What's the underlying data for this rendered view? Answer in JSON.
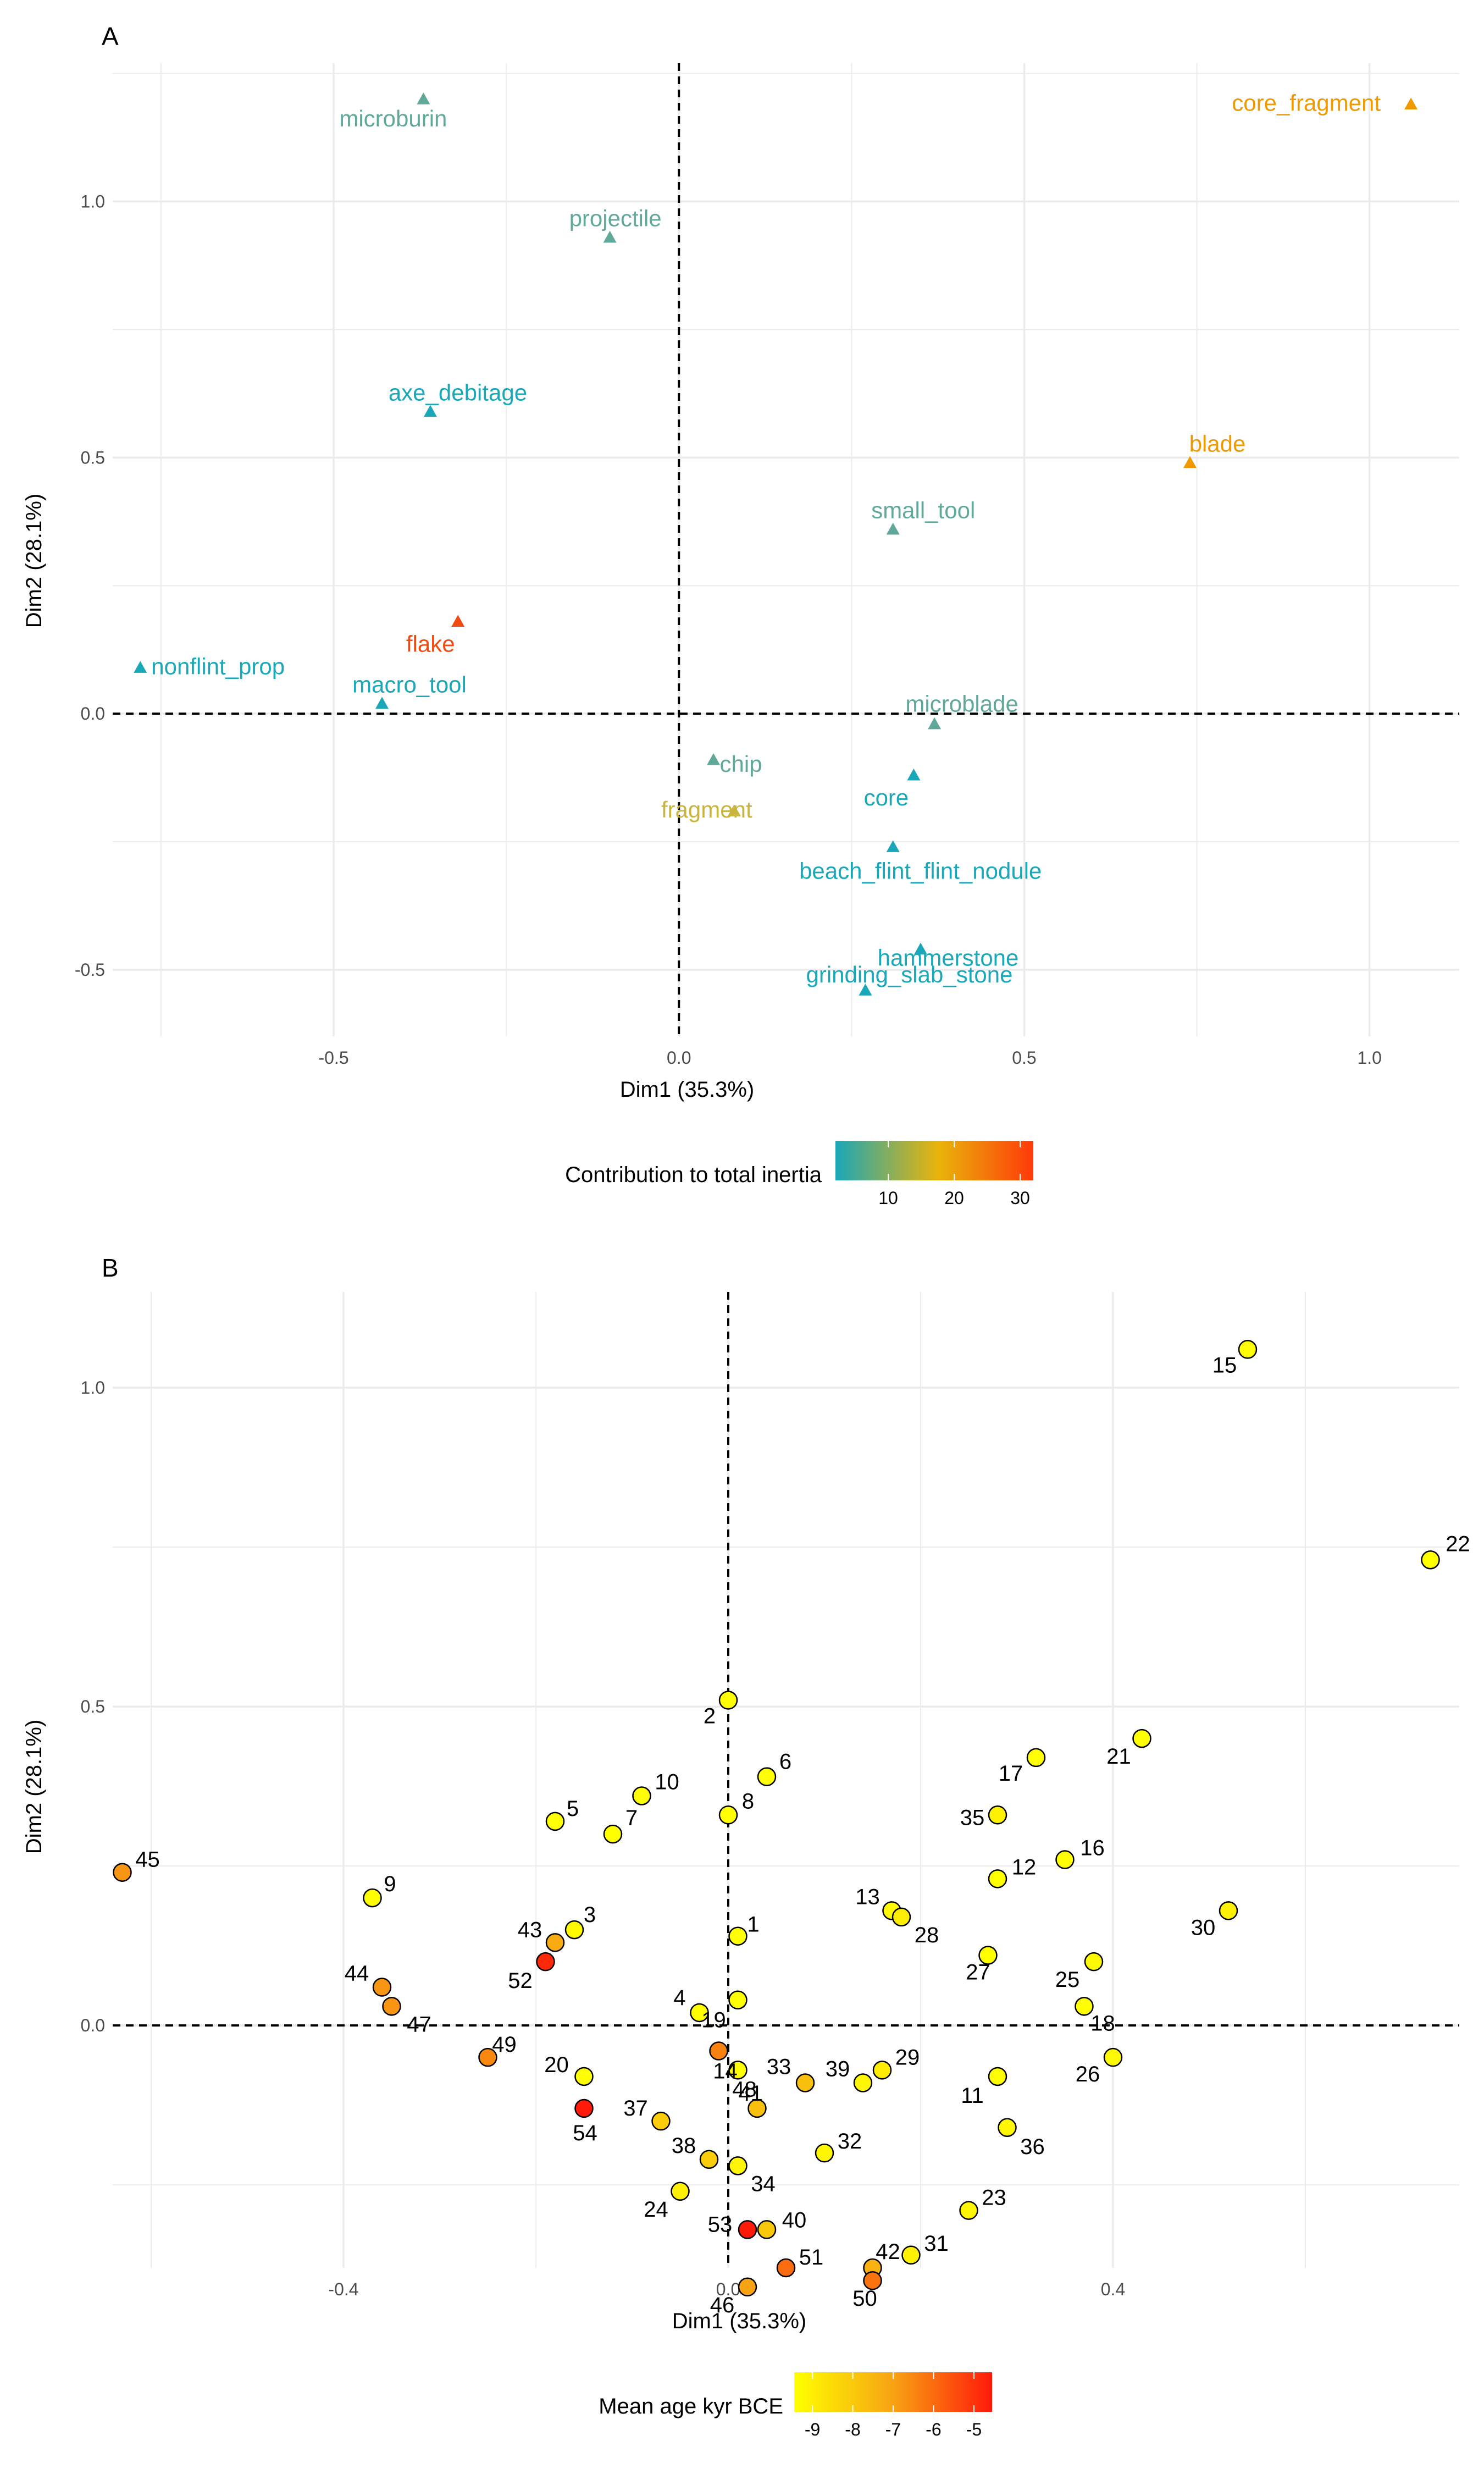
{
  "colors": {
    "teal": "#1AA7B8",
    "sage": "#5FA89A",
    "mustard": "#C9B43C",
    "orange": "#EE9A00",
    "red_orange": "#F24B12",
    "grid": "#EBEBEB",
    "inertia_gradient": [
      "#1AA7B8",
      "#E9B40A",
      "#FF3A0A"
    ],
    "age_gradient": [
      "#FFFF00",
      "#F7A313",
      "#FF1A0A"
    ]
  },
  "chart_data": [
    {
      "type": "scatter",
      "panel_label": "A",
      "xlabel": "Dim1 (35.3%)",
      "ylabel": "Dim2 (28.1%)",
      "xlim": [
        -0.82,
        1.13
      ],
      "ylim": [
        -0.63,
        1.27
      ],
      "x_ticks": [
        -0.5,
        0.0,
        0.5,
        1.0
      ],
      "x_tick_labels": [
        "-0.5",
        "0.0",
        "0.5",
        "1.0"
      ],
      "y_ticks": [
        -0.5,
        0.0,
        0.5,
        1.0
      ],
      "y_tick_labels": [
        "-0.5",
        "0.0",
        "0.5",
        "1.0"
      ],
      "grid": true,
      "reference_lines": {
        "x": 0,
        "y": 0,
        "style": "dashed"
      },
      "marker": "triangle",
      "legend": {
        "title": "Contribution to total inertia",
        "type": "colorbar",
        "ticks": [
          "10",
          "20",
          "30"
        ],
        "placement": "bottom"
      },
      "points": [
        {
          "label": "microburin",
          "x": -0.37,
          "y": 1.2,
          "color": "#5FA89A"
        },
        {
          "label": "core_fragment",
          "x": 1.06,
          "y": 1.19,
          "color": "#EE9A00"
        },
        {
          "label": "projectile",
          "x": -0.1,
          "y": 0.93,
          "color": "#5FA89A"
        },
        {
          "label": "axe_debitage",
          "x": -0.36,
          "y": 0.59,
          "color": "#1AA7B8"
        },
        {
          "label": "blade",
          "x": 0.74,
          "y": 0.49,
          "color": "#EE9A00"
        },
        {
          "label": "small_tool",
          "x": 0.31,
          "y": 0.36,
          "color": "#5FA89A"
        },
        {
          "label": "flake",
          "x": -0.32,
          "y": 0.18,
          "color": "#F24B12"
        },
        {
          "label": "nonflint_prop",
          "x": -0.78,
          "y": 0.09,
          "color": "#1AA7B8"
        },
        {
          "label": "macro_tool",
          "x": -0.43,
          "y": 0.02,
          "color": "#1AA7B8"
        },
        {
          "label": "microblade",
          "x": 0.37,
          "y": -0.02,
          "color": "#5FA89A"
        },
        {
          "label": "chip",
          "x": 0.05,
          "y": -0.09,
          "color": "#5FA89A"
        },
        {
          "label": "core",
          "x": 0.34,
          "y": -0.12,
          "color": "#1AA7B8"
        },
        {
          "label": "fragment",
          "x": 0.08,
          "y": -0.19,
          "color": "#C9B43C"
        },
        {
          "label": "beach_flint_flint_nodule",
          "x": 0.31,
          "y": -0.26,
          "color": "#1AA7B8"
        },
        {
          "label": "hammerstone",
          "x": 0.35,
          "y": -0.46,
          "color": "#1AA7B8"
        },
        {
          "label": "grinding_slab_stone",
          "x": 0.27,
          "y": -0.54,
          "color": "#1AA7B8"
        }
      ]
    },
    {
      "type": "scatter",
      "panel_label": "B",
      "xlabel": "Dim1 (35.3%)",
      "ylabel": "Dim2 (28.1%)",
      "xlim": [
        -0.64,
        0.76
      ],
      "ylim": [
        -0.38,
        1.15
      ],
      "x_ticks": [
        -0.4,
        0.0,
        0.4
      ],
      "x_tick_labels": [
        "-0.4",
        "0.0",
        "0.4"
      ],
      "y_ticks": [
        0.0,
        0.5,
        1.0
      ],
      "y_tick_labels": [
        "0.0",
        "0.5",
        "1.0"
      ],
      "grid": true,
      "reference_lines": {
        "x": 0,
        "y": 0,
        "style": "dashed"
      },
      "marker": "circle",
      "legend": {
        "title": "Mean age kyr BCE",
        "type": "colorbar",
        "ticks": [
          "-9",
          "-8",
          "-7",
          "-6",
          "-5"
        ],
        "placement": "bottom"
      },
      "points": [
        {
          "label": "1",
          "x": 0.01,
          "y": 0.14,
          "age": -9.0
        },
        {
          "label": "2",
          "x": 0.0,
          "y": 0.51,
          "age": -9.0
        },
        {
          "label": "3",
          "x": -0.16,
          "y": 0.15,
          "age": -8.9
        },
        {
          "label": "4",
          "x": -0.03,
          "y": 0.02,
          "age": -9.0
        },
        {
          "label": "5",
          "x": -0.18,
          "y": 0.32,
          "age": -9.0
        },
        {
          "label": "6",
          "x": 0.04,
          "y": 0.39,
          "age": -9.0
        },
        {
          "label": "7",
          "x": -0.12,
          "y": 0.3,
          "age": -9.0
        },
        {
          "label": "8",
          "x": 0.0,
          "y": 0.33,
          "age": -9.0
        },
        {
          "label": "9",
          "x": -0.37,
          "y": 0.2,
          "age": -9.0
        },
        {
          "label": "10",
          "x": -0.09,
          "y": 0.36,
          "age": -9.0
        },
        {
          "label": "11",
          "x": 0.28,
          "y": -0.08,
          "age": -9.0
        },
        {
          "label": "12",
          "x": 0.28,
          "y": 0.23,
          "age": -9.0
        },
        {
          "label": "13",
          "x": 0.17,
          "y": 0.18,
          "age": -8.9
        },
        {
          "label": "14",
          "x": -0.01,
          "y": -0.04,
          "age": -6.5
        },
        {
          "label": "15",
          "x": 0.54,
          "y": 1.06,
          "age": -9.0
        },
        {
          "label": "16",
          "x": 0.35,
          "y": 0.26,
          "age": -9.0
        },
        {
          "label": "17",
          "x": 0.32,
          "y": 0.42,
          "age": -9.0
        },
        {
          "label": "18",
          "x": 0.37,
          "y": 0.03,
          "age": -9.0
        },
        {
          "label": "19",
          "x": 0.01,
          "y": 0.04,
          "age": -9.0
        },
        {
          "label": "20",
          "x": -0.15,
          "y": -0.08,
          "age": -9.0
        },
        {
          "label": "21",
          "x": 0.43,
          "y": 0.45,
          "age": -9.0
        },
        {
          "label": "22",
          "x": 0.73,
          "y": 0.73,
          "age": -9.0
        },
        {
          "label": "23",
          "x": 0.25,
          "y": -0.29,
          "age": -8.8
        },
        {
          "label": "24",
          "x": -0.05,
          "y": -0.26,
          "age": -8.7
        },
        {
          "label": "25",
          "x": 0.38,
          "y": 0.1,
          "age": -8.9
        },
        {
          "label": "26",
          "x": 0.4,
          "y": -0.05,
          "age": -8.9
        },
        {
          "label": "27",
          "x": 0.27,
          "y": 0.11,
          "age": -9.0
        },
        {
          "label": "28",
          "x": 0.18,
          "y": 0.17,
          "age": -8.6
        },
        {
          "label": "29",
          "x": 0.16,
          "y": -0.07,
          "age": -8.6
        },
        {
          "label": "30",
          "x": 0.52,
          "y": 0.18,
          "age": -8.7
        },
        {
          "label": "31",
          "x": 0.19,
          "y": -0.36,
          "age": -8.7
        },
        {
          "label": "32",
          "x": 0.1,
          "y": -0.2,
          "age": -8.8
        },
        {
          "label": "33",
          "x": 0.08,
          "y": -0.09,
          "age": -7.6
        },
        {
          "label": "34",
          "x": 0.01,
          "y": -0.22,
          "age": -8.8
        },
        {
          "label": "35",
          "x": 0.28,
          "y": 0.33,
          "age": -8.7
        },
        {
          "label": "36",
          "x": 0.29,
          "y": -0.16,
          "age": -8.8
        },
        {
          "label": "37",
          "x": -0.07,
          "y": -0.15,
          "age": -7.9
        },
        {
          "label": "38",
          "x": -0.02,
          "y": -0.21,
          "age": -7.9
        },
        {
          "label": "39",
          "x": 0.14,
          "y": -0.09,
          "age": -8.8
        },
        {
          "label": "40",
          "x": 0.04,
          "y": -0.32,
          "age": -7.8
        },
        {
          "label": "41",
          "x": 0.03,
          "y": -0.13,
          "age": -7.6
        },
        {
          "label": "42",
          "x": 0.15,
          "y": -0.38,
          "age": -7.3
        },
        {
          "label": "43",
          "x": -0.18,
          "y": 0.13,
          "age": -7.2
        },
        {
          "label": "44",
          "x": -0.36,
          "y": 0.06,
          "age": -6.8
        },
        {
          "label": "45",
          "x": -0.63,
          "y": 0.24,
          "age": -6.8
        },
        {
          "label": "46",
          "x": 0.02,
          "y": -0.41,
          "age": -7.0
        },
        {
          "label": "47",
          "x": -0.35,
          "y": 0.03,
          "age": -6.8
        },
        {
          "label": "48",
          "x": 0.01,
          "y": -0.07,
          "age": -9.0
        },
        {
          "label": "49",
          "x": -0.25,
          "y": -0.05,
          "age": -6.6
        },
        {
          "label": "50",
          "x": 0.15,
          "y": -0.4,
          "age": -6.3
        },
        {
          "label": "51",
          "x": 0.06,
          "y": -0.38,
          "age": -6.2
        },
        {
          "label": "52",
          "x": -0.19,
          "y": 0.1,
          "age": -5.2
        },
        {
          "label": "53",
          "x": 0.02,
          "y": -0.32,
          "age": -5.0
        },
        {
          "label": "54",
          "x": -0.15,
          "y": -0.13,
          "age": -4.9
        }
      ]
    }
  ]
}
